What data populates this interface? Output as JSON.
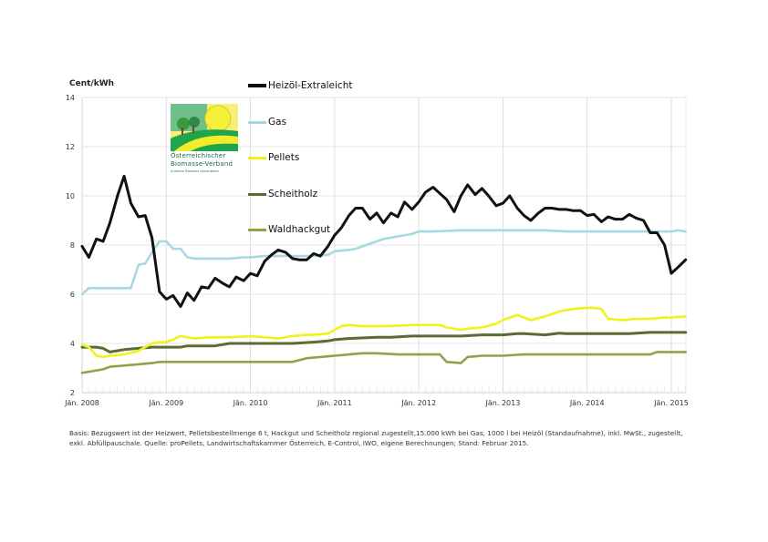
{
  "chart_data": {
    "type": "line",
    "unit_label": "Cent/kWh",
    "ylim": [
      2,
      14
    ],
    "yticks": [
      "2",
      "4",
      "6",
      "8",
      "10",
      "12",
      "14"
    ],
    "xlim": [
      2008.0,
      2015.2
    ],
    "xticks": [
      {
        "value": 2008,
        "label": "Jän. 2008"
      },
      {
        "value": 2009,
        "label": "Jän. 2009"
      },
      {
        "value": 2010,
        "label": "Jän. 2010"
      },
      {
        "value": 2011,
        "label": "Jän. 2011"
      },
      {
        "value": 2012,
        "label": "Jän. 2012"
      },
      {
        "value": 2013,
        "label": "Jän. 2013"
      },
      {
        "value": 2014,
        "label": "Jän. 2014"
      },
      {
        "value": 2015,
        "label": "Jän. 2015"
      }
    ],
    "grid": true,
    "legend_position": "top-center",
    "series": [
      {
        "name": "Heizöl-Extraleicht",
        "color": "#111111",
        "x": [
          2008.0,
          2008.08,
          2008.17,
          2008.25,
          2008.33,
          2008.42,
          2008.5,
          2008.58,
          2008.67,
          2008.75,
          2008.83,
          2008.92,
          2009.0,
          2009.08,
          2009.17,
          2009.25,
          2009.33,
          2009.42,
          2009.5,
          2009.58,
          2009.67,
          2009.75,
          2009.83,
          2009.92,
          2010.0,
          2010.08,
          2010.17,
          2010.25,
          2010.33,
          2010.42,
          2010.5,
          2010.58,
          2010.67,
          2010.75,
          2010.83,
          2010.92,
          2011.0,
          2011.08,
          2011.17,
          2011.25,
          2011.33,
          2011.42,
          2011.5,
          2011.58,
          2011.67,
          2011.75,
          2011.83,
          2011.92,
          2012.0,
          2012.08,
          2012.17,
          2012.25,
          2012.33,
          2012.42,
          2012.5,
          2012.58,
          2012.67,
          2012.75,
          2012.83,
          2012.92,
          2013.0,
          2013.08,
          2013.17,
          2013.25,
          2013.33,
          2013.42,
          2013.5,
          2013.58,
          2013.67,
          2013.75,
          2013.83,
          2013.92,
          2014.0,
          2014.08,
          2014.17,
          2014.25,
          2014.33,
          2014.42,
          2014.5,
          2014.58,
          2014.67,
          2014.75,
          2014.83,
          2014.92,
          2015.0,
          2015.08,
          2015.17
        ],
        "values": [
          7.95,
          7.5,
          8.25,
          8.15,
          8.9,
          10.0,
          10.8,
          9.7,
          9.15,
          9.2,
          8.3,
          6.1,
          5.8,
          5.95,
          5.5,
          6.05,
          5.75,
          6.3,
          6.25,
          6.65,
          6.45,
          6.3,
          6.7,
          6.55,
          6.85,
          6.75,
          7.35,
          7.6,
          7.8,
          7.7,
          7.45,
          7.4,
          7.4,
          7.65,
          7.55,
          7.95,
          8.4,
          8.7,
          9.2,
          9.5,
          9.5,
          9.05,
          9.3,
          8.9,
          9.3,
          9.15,
          9.75,
          9.45,
          9.75,
          10.15,
          10.35,
          10.1,
          9.85,
          9.35,
          10.0,
          10.45,
          10.05,
          10.3,
          10.0,
          9.6,
          9.7,
          10.0,
          9.5,
          9.2,
          9.0,
          9.3,
          9.5,
          9.5,
          9.45,
          9.45,
          9.4,
          9.4,
          9.2,
          9.25,
          8.95,
          9.15,
          9.05,
          9.05,
          9.25,
          9.1,
          9.0,
          8.5,
          8.5,
          8.0,
          6.85,
          7.1,
          7.4
        ]
      },
      {
        "name": "Gas",
        "color": "#a9d8e0",
        "x": [
          2008.0,
          2008.08,
          2008.5,
          2008.58,
          2008.67,
          2008.75,
          2008.83,
          2008.92,
          2009.0,
          2009.08,
          2009.17,
          2009.25,
          2009.33,
          2009.5,
          2009.75,
          2009.92,
          2010.0,
          2010.17,
          2010.5,
          2010.75,
          2010.92,
          2011.0,
          2011.17,
          2011.25,
          2011.42,
          2011.58,
          2011.75,
          2011.92,
          2012.0,
          2012.17,
          2012.5,
          2012.75,
          2012.92,
          2013.0,
          2013.25,
          2013.5,
          2013.75,
          2013.92,
          2014.0,
          2014.25,
          2014.5,
          2014.75,
          2014.92,
          2015.0,
          2015.08,
          2015.17
        ],
        "values": [
          6.0,
          6.25,
          6.25,
          6.25,
          7.2,
          7.25,
          7.7,
          8.15,
          8.15,
          7.85,
          7.85,
          7.5,
          7.45,
          7.45,
          7.45,
          7.5,
          7.5,
          7.55,
          7.55,
          7.55,
          7.6,
          7.75,
          7.8,
          7.85,
          8.05,
          8.25,
          8.35,
          8.45,
          8.55,
          8.55,
          8.6,
          8.6,
          8.6,
          8.6,
          8.6,
          8.6,
          8.55,
          8.55,
          8.55,
          8.55,
          8.55,
          8.55,
          8.55,
          8.55,
          8.6,
          8.55
        ]
      },
      {
        "name": "Pellets",
        "color": "#f2f21a",
        "x": [
          2008.0,
          2008.08,
          2008.17,
          2008.25,
          2008.33,
          2008.5,
          2008.67,
          2008.75,
          2008.83,
          2008.92,
          2009.0,
          2009.08,
          2009.17,
          2009.33,
          2009.5,
          2009.75,
          2010.0,
          2010.17,
          2010.33,
          2010.5,
          2010.67,
          2010.75,
          2010.92,
          2011.0,
          2011.08,
          2011.17,
          2011.33,
          2011.58,
          2011.75,
          2011.92,
          2012.0,
          2012.25,
          2012.33,
          2012.5,
          2012.58,
          2012.75,
          2012.92,
          2013.0,
          2013.08,
          2013.17,
          2013.25,
          2013.33,
          2013.5,
          2013.67,
          2013.83,
          2014.0,
          2014.08,
          2014.17,
          2014.25,
          2014.42,
          2014.58,
          2014.75,
          2014.92,
          2015.0,
          2015.17
        ],
        "values": [
          3.95,
          3.85,
          3.5,
          3.45,
          3.5,
          3.55,
          3.7,
          3.85,
          4.0,
          4.05,
          4.05,
          4.15,
          4.3,
          4.2,
          4.25,
          4.25,
          4.3,
          4.25,
          4.2,
          4.3,
          4.35,
          4.35,
          4.4,
          4.55,
          4.7,
          4.75,
          4.7,
          4.7,
          4.72,
          4.75,
          4.75,
          4.75,
          4.65,
          4.55,
          4.6,
          4.65,
          4.8,
          4.95,
          5.05,
          5.15,
          5.05,
          4.95,
          5.1,
          5.3,
          5.4,
          5.45,
          5.45,
          5.4,
          5.0,
          4.95,
          5.0,
          5.0,
          5.05,
          5.05,
          5.1
        ]
      },
      {
        "name": "Scheitholz",
        "color": "#5e6a34",
        "x": [
          2008.0,
          2008.17,
          2008.25,
          2008.33,
          2008.5,
          2008.67,
          2008.83,
          2009.0,
          2009.17,
          2009.25,
          2009.58,
          2009.75,
          2010.0,
          2010.5,
          2010.75,
          2010.92,
          2011.0,
          2011.17,
          2011.5,
          2011.67,
          2011.92,
          2012.0,
          2012.5,
          2012.75,
          2013.0,
          2013.17,
          2013.25,
          2013.5,
          2013.67,
          2013.75,
          2014.0,
          2014.5,
          2014.75,
          2015.0,
          2015.17
        ],
        "values": [
          3.85,
          3.85,
          3.8,
          3.65,
          3.75,
          3.8,
          3.85,
          3.85,
          3.85,
          3.9,
          3.9,
          4.0,
          4.0,
          4.0,
          4.05,
          4.1,
          4.15,
          4.2,
          4.25,
          4.25,
          4.3,
          4.3,
          4.3,
          4.35,
          4.35,
          4.4,
          4.4,
          4.35,
          4.42,
          4.4,
          4.4,
          4.4,
          4.45,
          4.45,
          4.45
        ]
      },
      {
        "name": "Waldhackgut",
        "color": "#8ea34a",
        "x": [
          2008.0,
          2008.17,
          2008.25,
          2008.33,
          2008.5,
          2008.67,
          2008.83,
          2008.92,
          2009.0,
          2009.5,
          2009.75,
          2010.0,
          2010.25,
          2010.5,
          2010.67,
          2010.83,
          2011.0,
          2011.17,
          2011.33,
          2011.5,
          2011.75,
          2012.0,
          2012.25,
          2012.33,
          2012.5,
          2012.58,
          2012.75,
          2013.0,
          2013.25,
          2013.5,
          2014.0,
          2014.5,
          2014.75,
          2014.83,
          2015.0,
          2015.17
        ],
        "values": [
          2.8,
          2.9,
          2.95,
          3.05,
          3.1,
          3.15,
          3.2,
          3.25,
          3.25,
          3.25,
          3.25,
          3.25,
          3.25,
          3.25,
          3.4,
          3.45,
          3.5,
          3.55,
          3.6,
          3.6,
          3.55,
          3.55,
          3.55,
          3.25,
          3.2,
          3.45,
          3.5,
          3.5,
          3.55,
          3.55,
          3.55,
          3.55,
          3.55,
          3.65,
          3.65,
          3.65
        ]
      }
    ],
    "note": "Basis: Bezugswert ist der Heizwert, Pelletsbestellmenge 6 t, Hackgut und Scheitholz regional zugestellt,15.000 kWh bei Gas, 1000 l bei Heizöl (Standaufnahme), inkl. MwSt., zugestellt, exkl. Abfüllpauschale. Quelle: proPellets, Landwirtschaftskammer Österreich, E-Control, IWO, eigene Berechnungen; Stand: Februar 2015."
  },
  "logo": {
    "line1": "Österreichischer",
    "line2": "Biomasse-Verband",
    "line3": "Austrian Biomass Association"
  }
}
